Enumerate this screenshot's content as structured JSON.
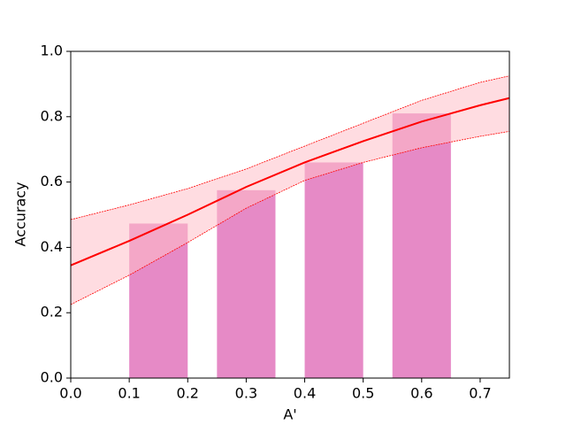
{
  "chart_data": {
    "type": "bar",
    "xlabel": "A'",
    "ylabel": "Accuracy",
    "x": [
      0.15,
      0.3,
      0.45,
      0.6
    ],
    "bar_width": 0.1,
    "values": [
      0.473,
      0.575,
      0.66,
      0.81
    ],
    "color": "#e68ac6",
    "fit": {
      "x": [
        0,
        0.1,
        0.2,
        0.3,
        0.4,
        0.5,
        0.6,
        0.7,
        0.75
      ],
      "values": [
        0.345,
        0.42,
        0.5,
        0.585,
        0.66,
        0.725,
        0.785,
        0.835,
        0.857
      ],
      "upper": [
        0.485,
        0.53,
        0.58,
        0.64,
        0.71,
        0.78,
        0.85,
        0.905,
        0.925
      ],
      "lower": [
        0.225,
        0.315,
        0.415,
        0.52,
        0.605,
        0.66,
        0.705,
        0.74,
        0.755
      ],
      "color": "#ff0000",
      "band_color": "#ffc0c8"
    },
    "xlim": [
      0,
      0.75
    ],
    "ylim": [
      0,
      1
    ],
    "xticks": [
      {
        "value": 0,
        "label": "0.0"
      },
      0.1,
      0.2,
      0.3,
      0.4,
      0.5,
      0.6,
      0.7
    ],
    "yticks": [
      {
        "value": 0,
        "label": "0.0"
      },
      0.2,
      0.4,
      0.6,
      0.8,
      {
        "value": 1,
        "label": "1.0"
      }
    ]
  }
}
